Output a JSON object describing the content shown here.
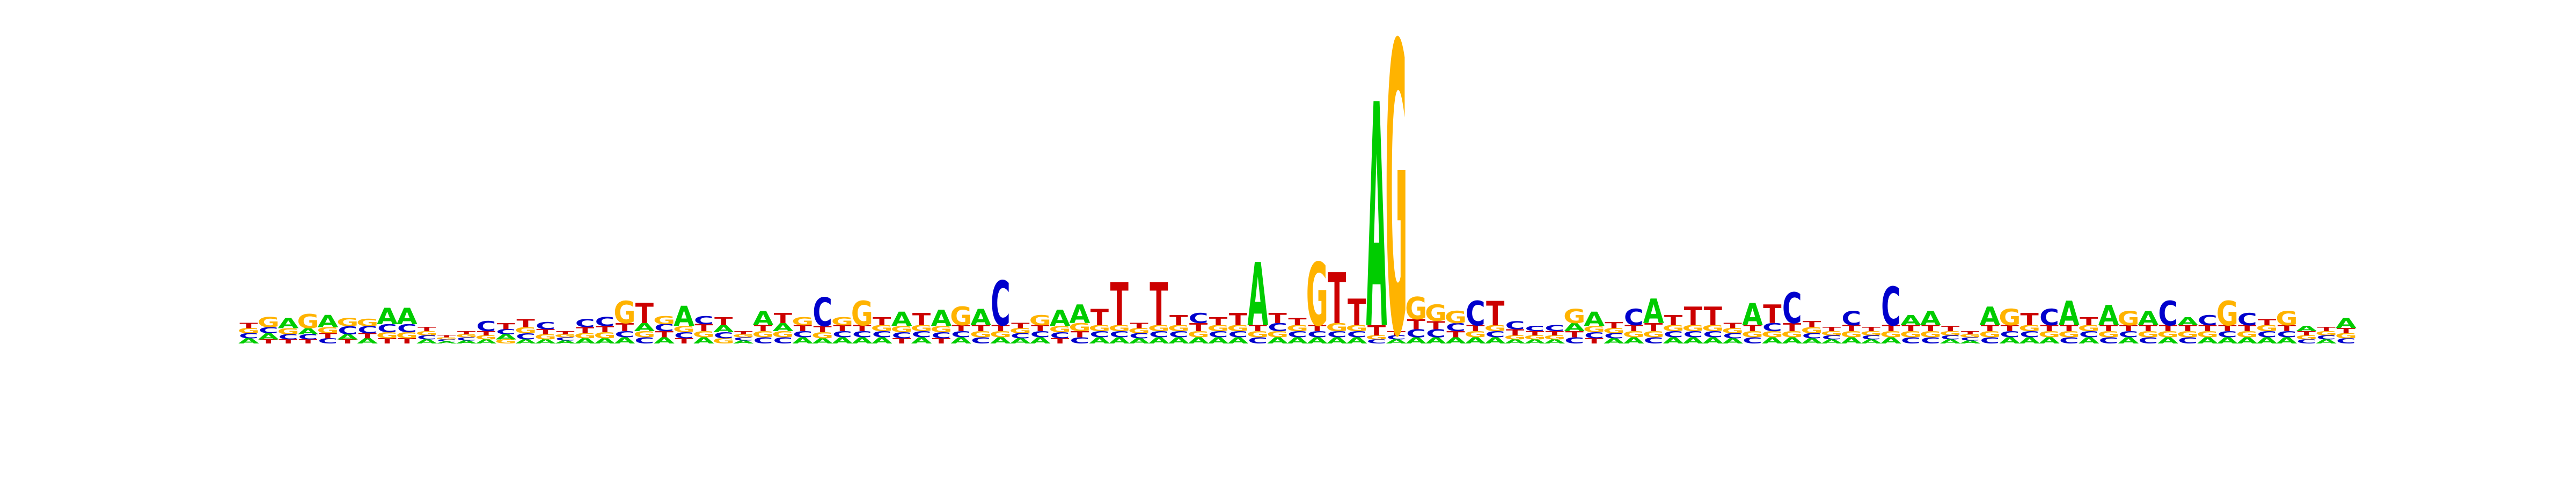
{
  "chart_data": {
    "type": "sequence_logo",
    "title": "",
    "xlabel": "",
    "ylabel": "",
    "alphabet": [
      "A",
      "C",
      "G",
      "T"
    ],
    "colors": {
      "A": "#00cc00",
      "C": "#0000cc",
      "G": "#ffb300",
      "T": "#cc0000"
    },
    "ylim": [
      0,
      2
    ],
    "positions": [
      {
        "A": 0.05,
        "C": 0.05,
        "G": 0.05,
        "T": 0.05
      },
      {
        "A": 0.06,
        "C": 0.06,
        "G": 0.1,
        "T": 0.04
      },
      {
        "A": 0.1,
        "C": 0.05,
        "G": 0.06,
        "T": 0.04
      },
      {
        "A": 0.06,
        "C": 0.05,
        "G": 0.14,
        "T": 0.04
      },
      {
        "A": 0.12,
        "C": 0.05,
        "G": 0.06,
        "T": 0.05
      },
      {
        "A": 0.05,
        "C": 0.08,
        "G": 0.08,
        "T": 0.04
      },
      {
        "A": 0.05,
        "C": 0.07,
        "G": 0.07,
        "T": 0.05
      },
      {
        "A": 0.16,
        "C": 0.08,
        "G": 0.06,
        "T": 0.05
      },
      {
        "A": 0.16,
        "C": 0.08,
        "G": 0.06,
        "T": 0.05
      },
      {
        "A": 0.04,
        "C": 0.04,
        "G": 0.04,
        "T": 0.04
      },
      {
        "A": 0.02,
        "C": 0.02,
        "G": 0.02,
        "T": 0.02
      },
      {
        "A": 0.03,
        "C": 0.03,
        "G": 0.03,
        "T": 0.03
      },
      {
        "A": 0.04,
        "C": 0.1,
        "G": 0.04,
        "T": 0.04
      },
      {
        "A": 0.05,
        "C": 0.05,
        "G": 0.04,
        "T": 0.06
      },
      {
        "A": 0.04,
        "C": 0.06,
        "G": 0.06,
        "T": 0.08
      },
      {
        "A": 0.04,
        "C": 0.07,
        "G": 0.05,
        "T": 0.05
      },
      {
        "A": 0.03,
        "C": 0.03,
        "G": 0.03,
        "T": 0.03
      },
      {
        "A": 0.05,
        "C": 0.08,
        "G": 0.05,
        "T": 0.06
      },
      {
        "A": 0.05,
        "C": 0.09,
        "G": 0.06,
        "T": 0.06
      },
      {
        "A": 0.06,
        "C": 0.06,
        "G": 0.22,
        "T": 0.08
      },
      {
        "A": 0.08,
        "C": 0.06,
        "G": 0.06,
        "T": 0.2
      },
      {
        "A": 0.06,
        "C": 0.07,
        "G": 0.08,
        "T": 0.06
      },
      {
        "A": 0.2,
        "C": 0.06,
        "G": 0.06,
        "T": 0.05
      },
      {
        "A": 0.06,
        "C": 0.08,
        "G": 0.06,
        "T": 0.07
      },
      {
        "A": 0.07,
        "C": 0.06,
        "G": 0.05,
        "T": 0.08
      },
      {
        "A": 0.03,
        "C": 0.03,
        "G": 0.03,
        "T": 0.03
      },
      {
        "A": 0.14,
        "C": 0.06,
        "G": 0.06,
        "T": 0.06
      },
      {
        "A": 0.08,
        "C": 0.06,
        "G": 0.06,
        "T": 0.1
      },
      {
        "A": 0.06,
        "C": 0.06,
        "G": 0.08,
        "T": 0.06
      },
      {
        "A": 0.05,
        "C": 0.28,
        "G": 0.06,
        "T": 0.06
      },
      {
        "A": 0.06,
        "C": 0.06,
        "G": 0.08,
        "T": 0.06
      },
      {
        "A": 0.06,
        "C": 0.06,
        "G": 0.24,
        "T": 0.06
      },
      {
        "A": 0.06,
        "C": 0.06,
        "G": 0.06,
        "T": 0.08
      },
      {
        "A": 0.14,
        "C": 0.06,
        "G": 0.06,
        "T": 0.05
      },
      {
        "A": 0.06,
        "C": 0.06,
        "G": 0.06,
        "T": 0.12
      },
      {
        "A": 0.16,
        "C": 0.06,
        "G": 0.06,
        "T": 0.05
      },
      {
        "A": 0.06,
        "C": 0.06,
        "G": 0.18,
        "T": 0.06
      },
      {
        "A": 0.16,
        "C": 0.06,
        "G": 0.06,
        "T": 0.06
      },
      {
        "A": 0.06,
        "C": 0.44,
        "G": 0.06,
        "T": 0.06
      },
      {
        "A": 0.05,
        "C": 0.05,
        "G": 0.05,
        "T": 0.05
      },
      {
        "A": 0.06,
        "C": 0.06,
        "G": 0.1,
        "T": 0.06
      },
      {
        "A": 0.16,
        "C": 0.06,
        "G": 0.06,
        "T": 0.05
      },
      {
        "A": 0.18,
        "C": 0.06,
        "G": 0.08,
        "T": 0.06
      },
      {
        "A": 0.06,
        "C": 0.06,
        "G": 0.06,
        "T": 0.16
      },
      {
        "A": 0.06,
        "C": 0.06,
        "G": 0.06,
        "T": 0.42
      },
      {
        "A": 0.05,
        "C": 0.05,
        "G": 0.05,
        "T": 0.05
      },
      {
        "A": 0.06,
        "C": 0.06,
        "G": 0.06,
        "T": 0.42
      },
      {
        "A": 0.06,
        "C": 0.06,
        "G": 0.06,
        "T": 0.1
      },
      {
        "A": 0.06,
        "C": 0.1,
        "G": 0.06,
        "T": 0.08
      },
      {
        "A": 0.06,
        "C": 0.06,
        "G": 0.06,
        "T": 0.08
      },
      {
        "A": 0.06,
        "C": 0.06,
        "G": 0.06,
        "T": 0.12
      },
      {
        "A": 0.62,
        "C": 0.06,
        "G": 0.06,
        "T": 0.06
      },
      {
        "A": 0.06,
        "C": 0.08,
        "G": 0.06,
        "T": 0.1
      },
      {
        "A": 0.06,
        "C": 0.06,
        "G": 0.06,
        "T": 0.07
      },
      {
        "A": 0.06,
        "C": 0.06,
        "G": 0.62,
        "T": 0.06
      },
      {
        "A": 0.06,
        "C": 0.06,
        "G": 0.08,
        "T": 0.5
      },
      {
        "A": 0.06,
        "C": 0.06,
        "G": 0.06,
        "T": 0.26
      },
      {
        "A": 2.2,
        "C": 0.04,
        "G": 0.04,
        "T": 0.1
      },
      {
        "A": 0.04,
        "C": 0.04,
        "G": 2.85,
        "T": 0.04
      },
      {
        "A": 0.06,
        "C": 0.08,
        "G": 0.22,
        "T": 0.1
      },
      {
        "A": 0.06,
        "C": 0.08,
        "G": 0.16,
        "T": 0.08
      },
      {
        "A": 0.06,
        "C": 0.08,
        "G": 0.12,
        "T": 0.06
      },
      {
        "A": 0.06,
        "C": 0.24,
        "G": 0.06,
        "T": 0.06
      },
      {
        "A": 0.06,
        "C": 0.06,
        "G": 0.06,
        "T": 0.24
      },
      {
        "A": 0.04,
        "C": 0.08,
        "G": 0.04,
        "T": 0.06
      },
      {
        "A": 0.04,
        "C": 0.05,
        "G": 0.04,
        "T": 0.04
      },
      {
        "A": 0.04,
        "C": 0.06,
        "G": 0.04,
        "T": 0.04
      },
      {
        "A": 0.08,
        "C": 0.06,
        "G": 0.14,
        "T": 0.06
      },
      {
        "A": 0.14,
        "C": 0.06,
        "G": 0.06,
        "T": 0.05
      },
      {
        "A": 0.05,
        "C": 0.05,
        "G": 0.05,
        "T": 0.06
      },
      {
        "A": 0.06,
        "C": 0.16,
        "G": 0.06,
        "T": 0.06
      },
      {
        "A": 0.24,
        "C": 0.06,
        "G": 0.06,
        "T": 0.08
      },
      {
        "A": 0.06,
        "C": 0.06,
        "G": 0.06,
        "T": 0.1
      },
      {
        "A": 0.06,
        "C": 0.06,
        "G": 0.06,
        "T": 0.18
      },
      {
        "A": 0.06,
        "C": 0.06,
        "G": 0.06,
        "T": 0.18
      },
      {
        "A": 0.05,
        "C": 0.05,
        "G": 0.05,
        "T": 0.05
      },
      {
        "A": 0.22,
        "C": 0.06,
        "G": 0.06,
        "T": 0.06
      },
      {
        "A": 0.06,
        "C": 0.08,
        "G": 0.06,
        "T": 0.18
      },
      {
        "A": 0.06,
        "C": 0.3,
        "G": 0.06,
        "T": 0.08
      },
      {
        "A": 0.05,
        "C": 0.05,
        "G": 0.06,
        "T": 0.06
      },
      {
        "A": 0.04,
        "C": 0.04,
        "G": 0.04,
        "T": 0.04
      },
      {
        "A": 0.06,
        "C": 0.14,
        "G": 0.06,
        "T": 0.06
      },
      {
        "A": 0.04,
        "C": 0.04,
        "G": 0.04,
        "T": 0.04
      },
      {
        "A": 0.06,
        "C": 0.38,
        "G": 0.06,
        "T": 0.06
      },
      {
        "A": 0.1,
        "C": 0.06,
        "G": 0.06,
        "T": 0.06
      },
      {
        "A": 0.14,
        "C": 0.06,
        "G": 0.06,
        "T": 0.06
      },
      {
        "A": 0.04,
        "C": 0.04,
        "G": 0.04,
        "T": 0.05
      },
      {
        "A": 0.03,
        "C": 0.03,
        "G": 0.03,
        "T": 0.03
      },
      {
        "A": 0.18,
        "C": 0.06,
        "G": 0.06,
        "T": 0.06
      },
      {
        "A": 0.06,
        "C": 0.06,
        "G": 0.16,
        "T": 0.06
      },
      {
        "A": 0.06,
        "C": 0.06,
        "G": 0.06,
        "T": 0.12
      },
      {
        "A": 0.06,
        "C": 0.16,
        "G": 0.06,
        "T": 0.06
      },
      {
        "A": 0.24,
        "C": 0.06,
        "G": 0.06,
        "T": 0.06
      },
      {
        "A": 0.06,
        "C": 0.06,
        "G": 0.06,
        "T": 0.08
      },
      {
        "A": 0.2,
        "C": 0.06,
        "G": 0.06,
        "T": 0.06
      },
      {
        "A": 0.06,
        "C": 0.06,
        "G": 0.14,
        "T": 0.06
      },
      {
        "A": 0.14,
        "C": 0.06,
        "G": 0.06,
        "T": 0.06
      },
      {
        "A": 0.06,
        "C": 0.24,
        "G": 0.06,
        "T": 0.06
      },
      {
        "A": 0.08,
        "C": 0.06,
        "G": 0.06,
        "T": 0.06
      },
      {
        "A": 0.06,
        "C": 0.1,
        "G": 0.06,
        "T": 0.06
      },
      {
        "A": 0.06,
        "C": 0.06,
        "G": 0.24,
        "T": 0.06
      },
      {
        "A": 0.06,
        "C": 0.12,
        "G": 0.06,
        "T": 0.06
      },
      {
        "A": 0.06,
        "C": 0.06,
        "G": 0.06,
        "T": 0.06
      },
      {
        "A": 0.06,
        "C": 0.06,
        "G": 0.14,
        "T": 0.06
      },
      {
        "A": 0.05,
        "C": 0.04,
        "G": 0.04,
        "T": 0.04
      },
      {
        "A": 0.04,
        "C": 0.04,
        "G": 0.04,
        "T": 0.04
      },
      {
        "A": 0.1,
        "C": 0.05,
        "G": 0.05,
        "T": 0.05
      }
    ]
  }
}
